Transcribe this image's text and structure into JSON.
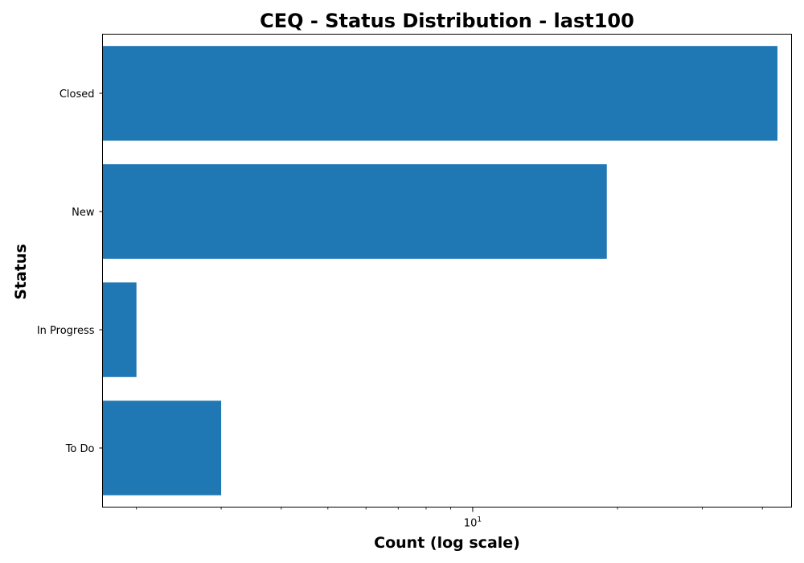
{
  "chart_data": {
    "type": "bar",
    "orientation": "horizontal",
    "title": "CEQ - Status Distribution - last100",
    "xlabel": "Count (log scale)",
    "ylabel": "Status",
    "x_scale": "log",
    "xlim": [
      1.7,
      46
    ],
    "categories": [
      "Closed",
      "New",
      "In Progress",
      "To Do"
    ],
    "values": [
      43,
      19,
      2,
      3
    ],
    "major_tick_label": {
      "base": "10",
      "exponent": "1"
    },
    "bar_color": "#1f77b4",
    "grid": false
  }
}
